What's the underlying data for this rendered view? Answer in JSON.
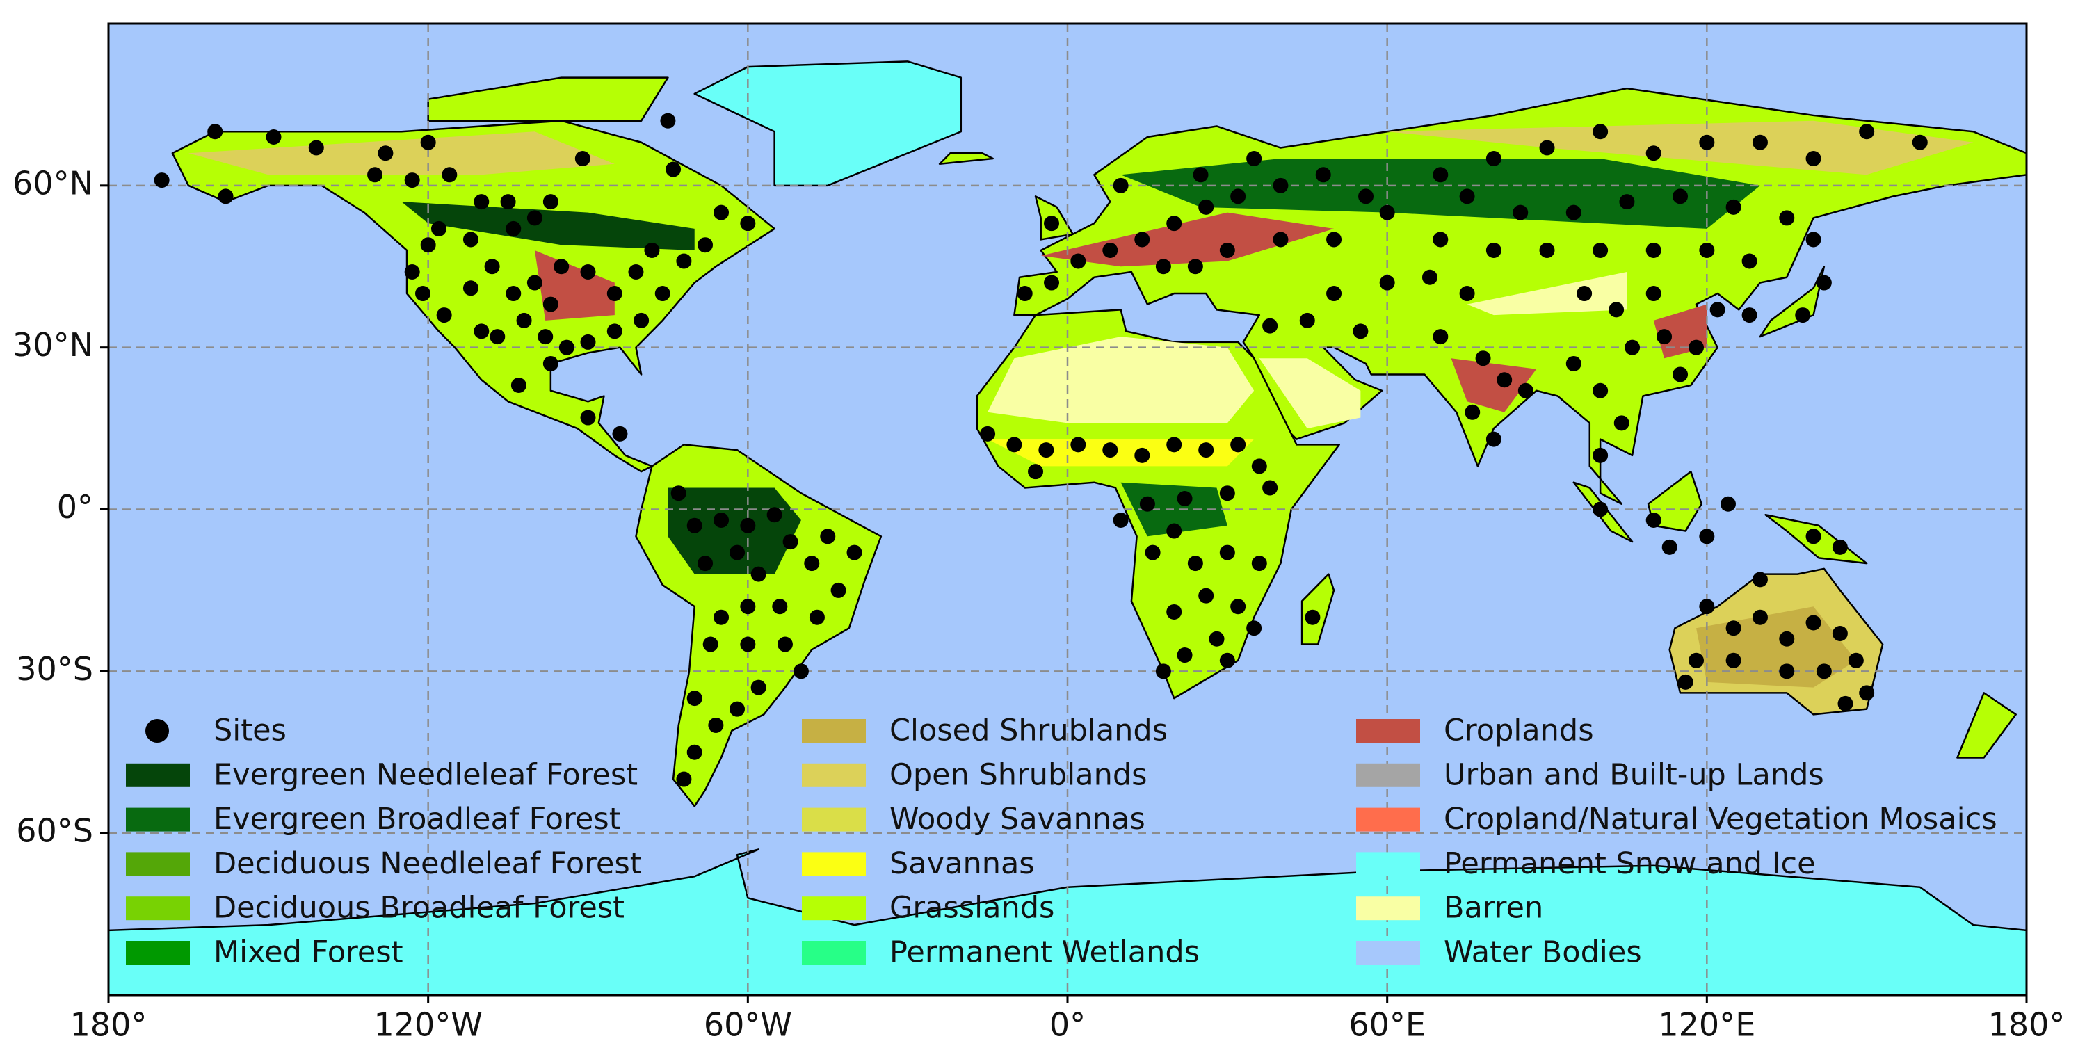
{
  "chart_data": {
    "type": "map",
    "xlim": [
      -180,
      180
    ],
    "ylim": [
      -90,
      90
    ],
    "xticks": [
      {
        "value": -180,
        "label": "180°"
      },
      {
        "value": -120,
        "label": "120°W"
      },
      {
        "value": -60,
        "label": "60°W"
      },
      {
        "value": 0,
        "label": "0°"
      },
      {
        "value": 60,
        "label": "60°E"
      },
      {
        "value": 120,
        "label": "120°E"
      },
      {
        "value": 180,
        "label": "180°"
      }
    ],
    "yticks": [
      {
        "value": 60,
        "label": "60°N"
      },
      {
        "value": 30,
        "label": "30°N"
      },
      {
        "value": 0,
        "label": "0°"
      },
      {
        "value": -30,
        "label": "30°S"
      },
      {
        "value": -60,
        "label": "60°S"
      }
    ],
    "grid": true,
    "series": [
      {
        "name": "Sites",
        "color": "#000000",
        "x": [
          -160,
          -170,
          -158,
          -149,
          -141,
          -128,
          -120,
          -123,
          -130,
          -116,
          -110,
          -105,
          -100,
          -97,
          -118,
          -112,
          -104,
          -120,
          -123,
          -121,
          -117,
          -112,
          -108,
          -104,
          -100,
          -97,
          -95,
          -90,
          -85,
          -81,
          -78,
          -72,
          -68,
          -65,
          -60,
          -76,
          -80,
          -85,
          -90,
          -94,
          -98,
          -102,
          -107,
          -110,
          -97,
          -103,
          -90,
          -84,
          -74,
          -75,
          -91,
          -73,
          -70,
          -65,
          -60,
          -55,
          -62,
          -68,
          -58,
          -52,
          -48,
          -45,
          -40,
          -43,
          -47,
          -54,
          -60,
          -65,
          -67,
          -60,
          -53,
          -50,
          -58,
          -62,
          -66,
          -70,
          -72,
          -70,
          -15,
          -10,
          -4,
          2,
          8,
          14,
          20,
          26,
          32,
          36,
          38,
          30,
          22,
          15,
          10,
          16,
          24,
          30,
          36,
          26,
          20,
          32,
          28,
          22,
          18,
          30,
          35,
          46,
          -6,
          20,
          -8,
          -3,
          2,
          8,
          14,
          20,
          26,
          32,
          40,
          48,
          56,
          60,
          30,
          24,
          18,
          40,
          50,
          -3,
          10,
          25,
          35,
          70,
          80,
          90,
          100,
          110,
          120,
          130,
          140,
          150,
          160,
          75,
          85,
          95,
          105,
          115,
          125,
          135,
          140,
          128,
          120,
          110,
          100,
          90,
          80,
          70,
          68,
          75,
          60,
          50,
          45,
          38,
          55,
          70,
          78,
          82,
          86,
          76,
          80,
          95,
          100,
          104,
          100,
          106,
          112,
          118,
          115,
          122,
          128,
          138,
          142,
          103,
          110,
          97,
          100,
          110,
          113,
          120,
          124,
          140,
          145,
          120,
          125,
          130,
          135,
          140,
          145,
          148,
          142,
          135,
          125,
          118,
          116,
          150,
          146,
          130
        ],
        "values": [
          70,
          61,
          58,
          69,
          67,
          66,
          68,
          61,
          62,
          62,
          57,
          57,
          54,
          57,
          52,
          50,
          52,
          49,
          44,
          40,
          36,
          41,
          45,
          40,
          42,
          38,
          45,
          44,
          40,
          44,
          48,
          46,
          49,
          55,
          53,
          40,
          35,
          33,
          31,
          30,
          32,
          35,
          32,
          33,
          27,
          23,
          17,
          14,
          63,
          72,
          65,
          3,
          -3,
          -2,
          -3,
          -1,
          -8,
          -10,
          -12,
          -6,
          -10,
          -5,
          -8,
          -15,
          -20,
          -18,
          -18,
          -20,
          -25,
          -25,
          -25,
          -30,
          -33,
          -37,
          -40,
          -45,
          -50,
          -35,
          14,
          12,
          11,
          12,
          11,
          10,
          12,
          11,
          12,
          8,
          4,
          3,
          2,
          1,
          -2,
          -8,
          -10,
          -8,
          -10,
          -16,
          -19,
          -18,
          -24,
          -27,
          -30,
          -28,
          -22,
          -20,
          7,
          -4,
          40,
          42,
          46,
          48,
          50,
          53,
          56,
          58,
          60,
          62,
          58,
          55,
          48,
          45,
          45,
          50,
          50,
          53,
          60,
          62,
          65,
          62,
          65,
          67,
          70,
          66,
          68,
          68,
          65,
          70,
          68,
          58,
          55,
          55,
          57,
          58,
          56,
          54,
          50,
          46,
          48,
          48,
          48,
          48,
          48,
          50,
          43,
          40,
          42,
          40,
          35,
          34,
          33,
          32,
          28,
          24,
          22,
          18,
          13,
          27,
          22,
          16,
          10,
          30,
          32,
          30,
          25,
          37,
          36,
          36,
          42,
          37,
          40,
          40,
          0,
          -2,
          -7,
          -5,
          1,
          -5,
          -7,
          -18,
          -22,
          -20,
          -24,
          -21,
          -23,
          -28,
          -30,
          -30,
          -28,
          -28,
          -32,
          -34,
          -36,
          -13
        ]
      }
    ],
    "land_cover": [
      {
        "name": "Evergreen Needleleaf Forest",
        "color": "#05450a"
      },
      {
        "name": "Evergreen Broadleaf Forest",
        "color": "#086a10"
      },
      {
        "name": "Deciduous Needleleaf Forest",
        "color": "#54a708"
      },
      {
        "name": "Deciduous Broadleaf Forest",
        "color": "#78d203"
      },
      {
        "name": "Mixed Forest",
        "color": "#009900"
      },
      {
        "name": "Closed Shrublands",
        "color": "#c6b044"
      },
      {
        "name": "Open Shrublands",
        "color": "#dcd159"
      },
      {
        "name": "Woody Savannas",
        "color": "#dade48"
      },
      {
        "name": "Savannas",
        "color": "#fbff13"
      },
      {
        "name": "Grasslands",
        "color": "#b6ff05"
      },
      {
        "name": "Permanent Wetlands",
        "color": "#27ff87"
      },
      {
        "name": "Croplands",
        "color": "#c24f44"
      },
      {
        "name": "Urban and Built-up Lands",
        "color": "#a5a5a5"
      },
      {
        "name": "Cropland/Natural Vegetation Mosaics",
        "color": "#ff6d4c"
      },
      {
        "name": "Permanent Snow and Ice",
        "color": "#69fff8"
      },
      {
        "name": "Barren",
        "color": "#f9ffa4"
      },
      {
        "name": "Water Bodies",
        "color": "#a6c8fc"
      }
    ]
  }
}
